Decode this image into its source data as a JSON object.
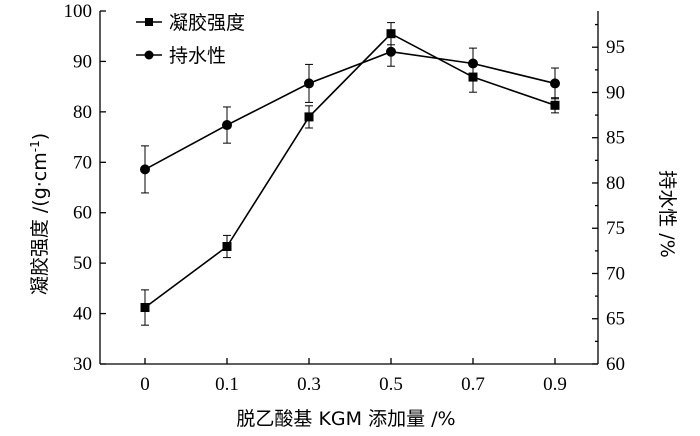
{
  "chart_data": {
    "type": "line",
    "x_tick_labels": [
      "0",
      "0.1",
      "0.3",
      "0.5",
      "0.7",
      "0.9"
    ],
    "xlabel": "脱乙酸基 KGM 添加量 /%",
    "ylabel_left": {
      "main": "凝胶强度 /(g·cm",
      "sup": "-1",
      "close": ")"
    },
    "ylabel_right": "持水性 /%",
    "ylim_left": [
      30,
      100
    ],
    "yticks_left": [
      30,
      40,
      50,
      60,
      70,
      80,
      90,
      100
    ],
    "ylim_right": [
      60,
      99
    ],
    "yticks_right": [
      60,
      65,
      70,
      75,
      80,
      85,
      90,
      95
    ],
    "legend_position": "top-left",
    "series": [
      {
        "name": "凝胶强度",
        "axis": "left",
        "marker": "square",
        "values": [
          41.2,
          53.3,
          79.0,
          95.5,
          86.9,
          81.3
        ],
        "errors": [
          3.5,
          2.2,
          2.2,
          2.2,
          3.0,
          1.5
        ]
      },
      {
        "name": "持水性",
        "axis": "right",
        "marker": "circle",
        "values": [
          81.5,
          86.4,
          91.0,
          94.5,
          93.2,
          91.0
        ],
        "errors": [
          2.6,
          2.0,
          2.1,
          1.6,
          1.7,
          1.7
        ]
      }
    ]
  }
}
